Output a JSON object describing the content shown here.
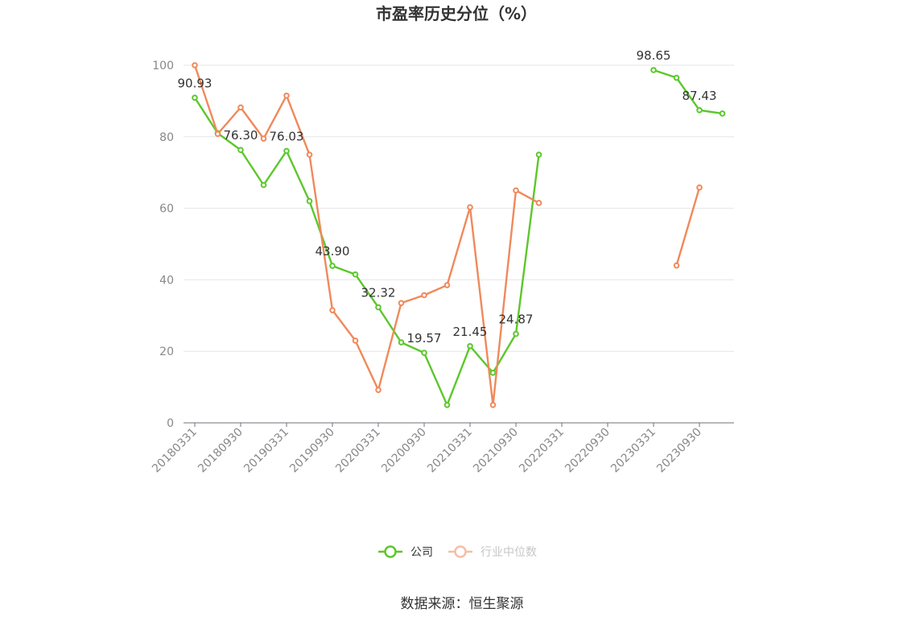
{
  "chart_data": {
    "type": "line",
    "title": "市盈率历史分位（%）",
    "source": "数据来源：恒生聚源",
    "ylim": [
      0,
      100
    ],
    "yticks": [
      0,
      20,
      40,
      60,
      80,
      100
    ],
    "grid": true,
    "legend_position": "bottom",
    "categories": [
      "20180331",
      "20180630",
      "20180930",
      "20181231",
      "20190331",
      "20190630",
      "20190930",
      "20191231",
      "20200331",
      "20200630",
      "20200930",
      "20201231",
      "20210331",
      "20210630",
      "20210930",
      "20211231",
      "20220331",
      "20220630",
      "20220930",
      "20221231",
      "20230331",
      "20230630",
      "20230930",
      "20231231"
    ],
    "x_tick_labels": [
      "20180331",
      "20180930",
      "20190331",
      "20190930",
      "20200331",
      "20200930",
      "20210331",
      "20210930",
      "20220331",
      "20220930",
      "20230331",
      "20230930"
    ],
    "series": [
      {
        "name": "公司",
        "color": "#5cc72c",
        "values": [
          90.93,
          81.0,
          76.3,
          66.5,
          76.03,
          62.0,
          43.9,
          41.5,
          32.32,
          22.5,
          19.57,
          5.0,
          21.45,
          14.0,
          24.87,
          75.0,
          null,
          null,
          null,
          null,
          98.65,
          96.5,
          87.43,
          86.5
        ],
        "labels": {
          "0": "90.93",
          "2": "76.30",
          "4": "76.03",
          "6": "43.90",
          "8": "32.32",
          "10": "19.57",
          "12": "21.45",
          "14": "24.87",
          "20": "98.65",
          "22": "87.43"
        }
      },
      {
        "name": "行业中位数",
        "color": "#f0895a",
        "values": [
          100.0,
          80.8,
          88.2,
          79.5,
          91.5,
          75.0,
          31.5,
          23.0,
          9.2,
          33.5,
          35.7,
          38.5,
          60.3,
          5.0,
          65.0,
          61.5,
          null,
          null,
          null,
          null,
          null,
          44.0,
          65.8,
          null
        ],
        "labels": {}
      }
    ]
  }
}
